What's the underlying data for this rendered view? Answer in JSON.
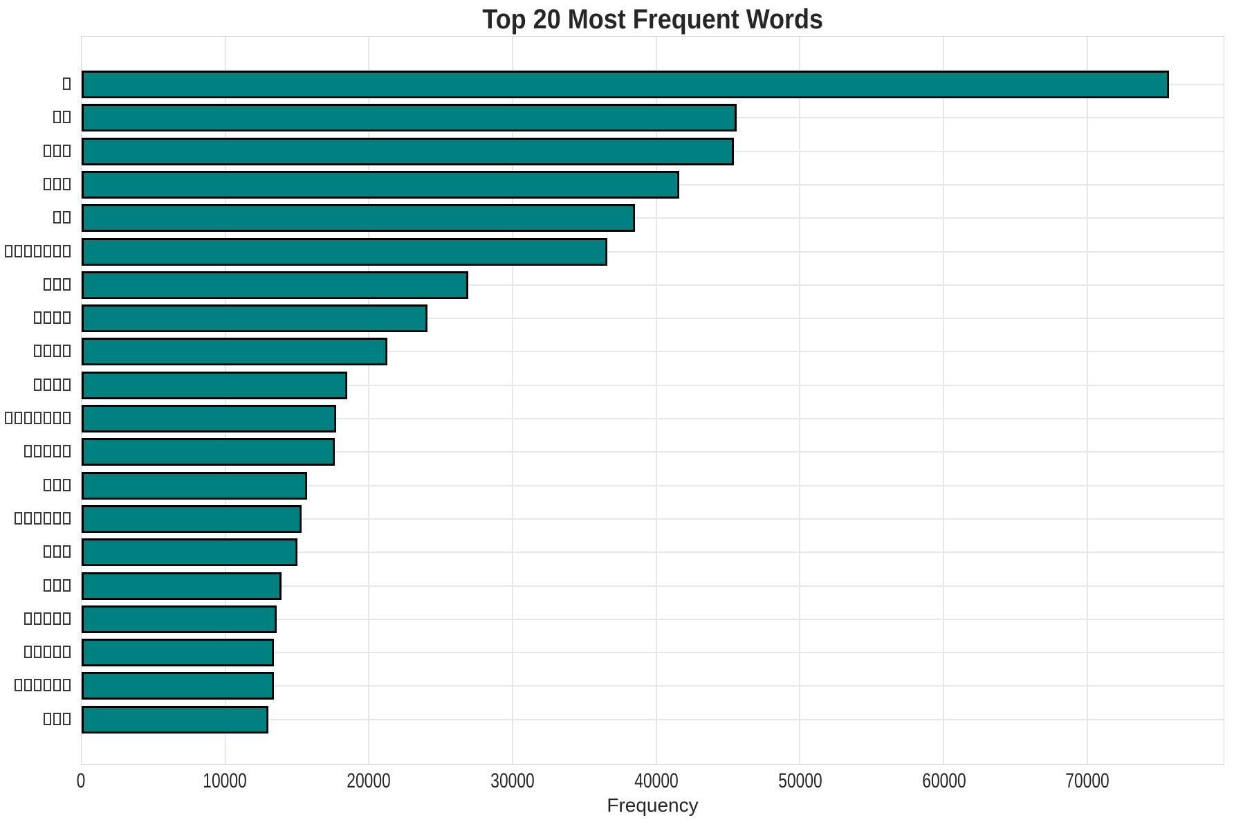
{
  "chart": {
    "title": "Top 20 Most Frequent Words",
    "xlabel": "Frequency"
  },
  "chart_data": {
    "type": "bar",
    "orientation": "horizontal",
    "title": "Top 20 Most Frequent Words",
    "xlabel": "Frequency",
    "ylabel": "",
    "note": "Y-axis category labels are non-Latin words rendered as missing-glyph tofu boxes; box_counts gives the number of tofu glyphs per label, top to bottom.",
    "categories": [
      "□",
      "□□",
      "□□□",
      "□□□",
      "□□",
      "□□□□□□□",
      "□□□",
      "□□□□",
      "□□□□",
      "□□□□",
      "□□□□□□□",
      "□□□□□",
      "□□□",
      "□□□□□□",
      "□□□",
      "□□□",
      "□□□□□",
      "□□□□□",
      "□□□□□□",
      "□□□"
    ],
    "box_counts": [
      1,
      2,
      3,
      3,
      2,
      7,
      3,
      4,
      4,
      4,
      7,
      5,
      3,
      6,
      3,
      3,
      5,
      5,
      6,
      3
    ],
    "values": [
      75700,
      45600,
      45400,
      41600,
      38500,
      36600,
      26900,
      24100,
      21300,
      18500,
      17700,
      17600,
      15700,
      15300,
      15000,
      13900,
      13600,
      13400,
      13400,
      13000
    ],
    "x_ticks": [
      0,
      10000,
      20000,
      30000,
      40000,
      50000,
      60000,
      70000
    ],
    "xlim": [
      0,
      79500
    ],
    "grid": true,
    "legend": false,
    "bar_color": "#008080",
    "bar_edge_color": "#000000",
    "grid_color": "#e7e7e7",
    "text_color": "#262626"
  }
}
